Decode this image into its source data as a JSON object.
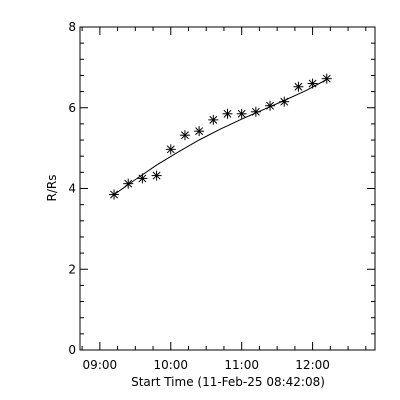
{
  "chart_data": {
    "type": "scatter",
    "title": "",
    "xlabel": "Start Time (11-Feb-25 08:42:08)",
    "ylabel": "R/Rs",
    "x_unit": "hours",
    "xlim": [
      8.72,
      12.88
    ],
    "ylim": [
      0,
      8
    ],
    "x_ticks": [
      {
        "value": 9.0,
        "label": "09:00"
      },
      {
        "value": 10.0,
        "label": "10:00"
      },
      {
        "value": 11.0,
        "label": "11:00"
      },
      {
        "value": 12.0,
        "label": "12:00"
      }
    ],
    "x_minor_ticks": [
      8.75,
      9.25,
      9.5,
      9.75,
      10.25,
      10.5,
      10.75,
      11.25,
      11.5,
      11.75,
      12.25,
      12.5,
      12.75
    ],
    "y_ticks": [
      {
        "value": 0,
        "label": "0"
      },
      {
        "value": 2,
        "label": "2"
      },
      {
        "value": 4,
        "label": "4"
      },
      {
        "value": 6,
        "label": "6"
      },
      {
        "value": 8,
        "label": "8"
      }
    ],
    "y_minor_ticks": [
      0.4,
      0.8,
      1.2,
      1.6,
      2.4,
      2.8,
      3.2,
      3.6,
      4.4,
      4.8,
      5.2,
      5.6,
      6.4,
      6.8,
      7.2,
      7.6
    ],
    "series": [
      {
        "marker": "asterisk",
        "x": [
          "09:12",
          "09:24",
          "09:36",
          "09:48",
          "10:00",
          "10:12",
          "10:24",
          "10:36",
          "10:48",
          "11:00",
          "11:12",
          "11:24",
          "11:36",
          "11:48",
          "12:00",
          "12:12"
        ],
        "x_hours": [
          9.2,
          9.4,
          9.6,
          9.8,
          10.0,
          10.2,
          10.4,
          10.6,
          10.8,
          11.0,
          11.2,
          11.4,
          11.6,
          11.8,
          12.0,
          12.2
        ],
        "values": [
          3.85,
          4.12,
          4.25,
          4.32,
          4.97,
          5.32,
          5.42,
          5.7,
          5.85,
          5.85,
          5.9,
          6.05,
          6.15,
          6.52,
          6.6,
          6.72
        ]
      }
    ],
    "fit": {
      "style": "solid",
      "x_hours": [
        9.2,
        9.5,
        9.8,
        10.1,
        10.4,
        10.7,
        11.0,
        11.3,
        11.6,
        11.9,
        12.2
      ],
      "values": [
        3.85,
        4.22,
        4.58,
        4.9,
        5.2,
        5.47,
        5.72,
        5.95,
        6.18,
        6.42,
        6.7
      ]
    },
    "grid": false
  }
}
